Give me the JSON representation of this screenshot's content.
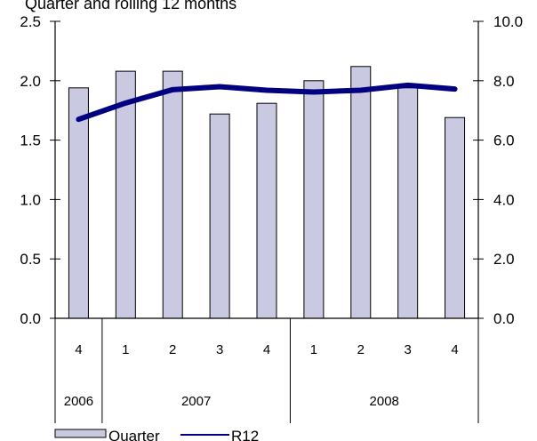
{
  "chart_data": {
    "type": "bar+line",
    "title": "Quarter and rolling 12 months",
    "quarters": [
      "4",
      "1",
      "2",
      "3",
      "4",
      "1",
      "2",
      "3",
      "4"
    ],
    "years": [
      {
        "label": "2006",
        "span": 1
      },
      {
        "label": "2007",
        "span": 4
      },
      {
        "label": "2008",
        "span": 4
      }
    ],
    "series": [
      {
        "name": "Quarter",
        "type": "bar",
        "axis": "left",
        "color": "#c9c9e2",
        "values": [
          1.94,
          2.08,
          2.08,
          1.72,
          1.81,
          2.0,
          2.12,
          1.94,
          1.69
        ]
      },
      {
        "name": "R12",
        "type": "line",
        "axis": "right",
        "color": "#000080",
        "values": [
          6.7,
          7.25,
          7.7,
          7.8,
          7.68,
          7.62,
          7.68,
          7.85,
          7.72
        ]
      }
    ],
    "y_left": {
      "min": 0,
      "max": 2.5,
      "ticks": [
        "0.0",
        "0.5",
        "1.0",
        "1.5",
        "2.0",
        "2.5"
      ]
    },
    "y_right": {
      "min": 0,
      "max": 10,
      "ticks": [
        "0.0",
        "2.0",
        "4.0",
        "6.0",
        "8.0",
        "10.0"
      ]
    },
    "grid": false,
    "legend_position": "bottom-left"
  }
}
